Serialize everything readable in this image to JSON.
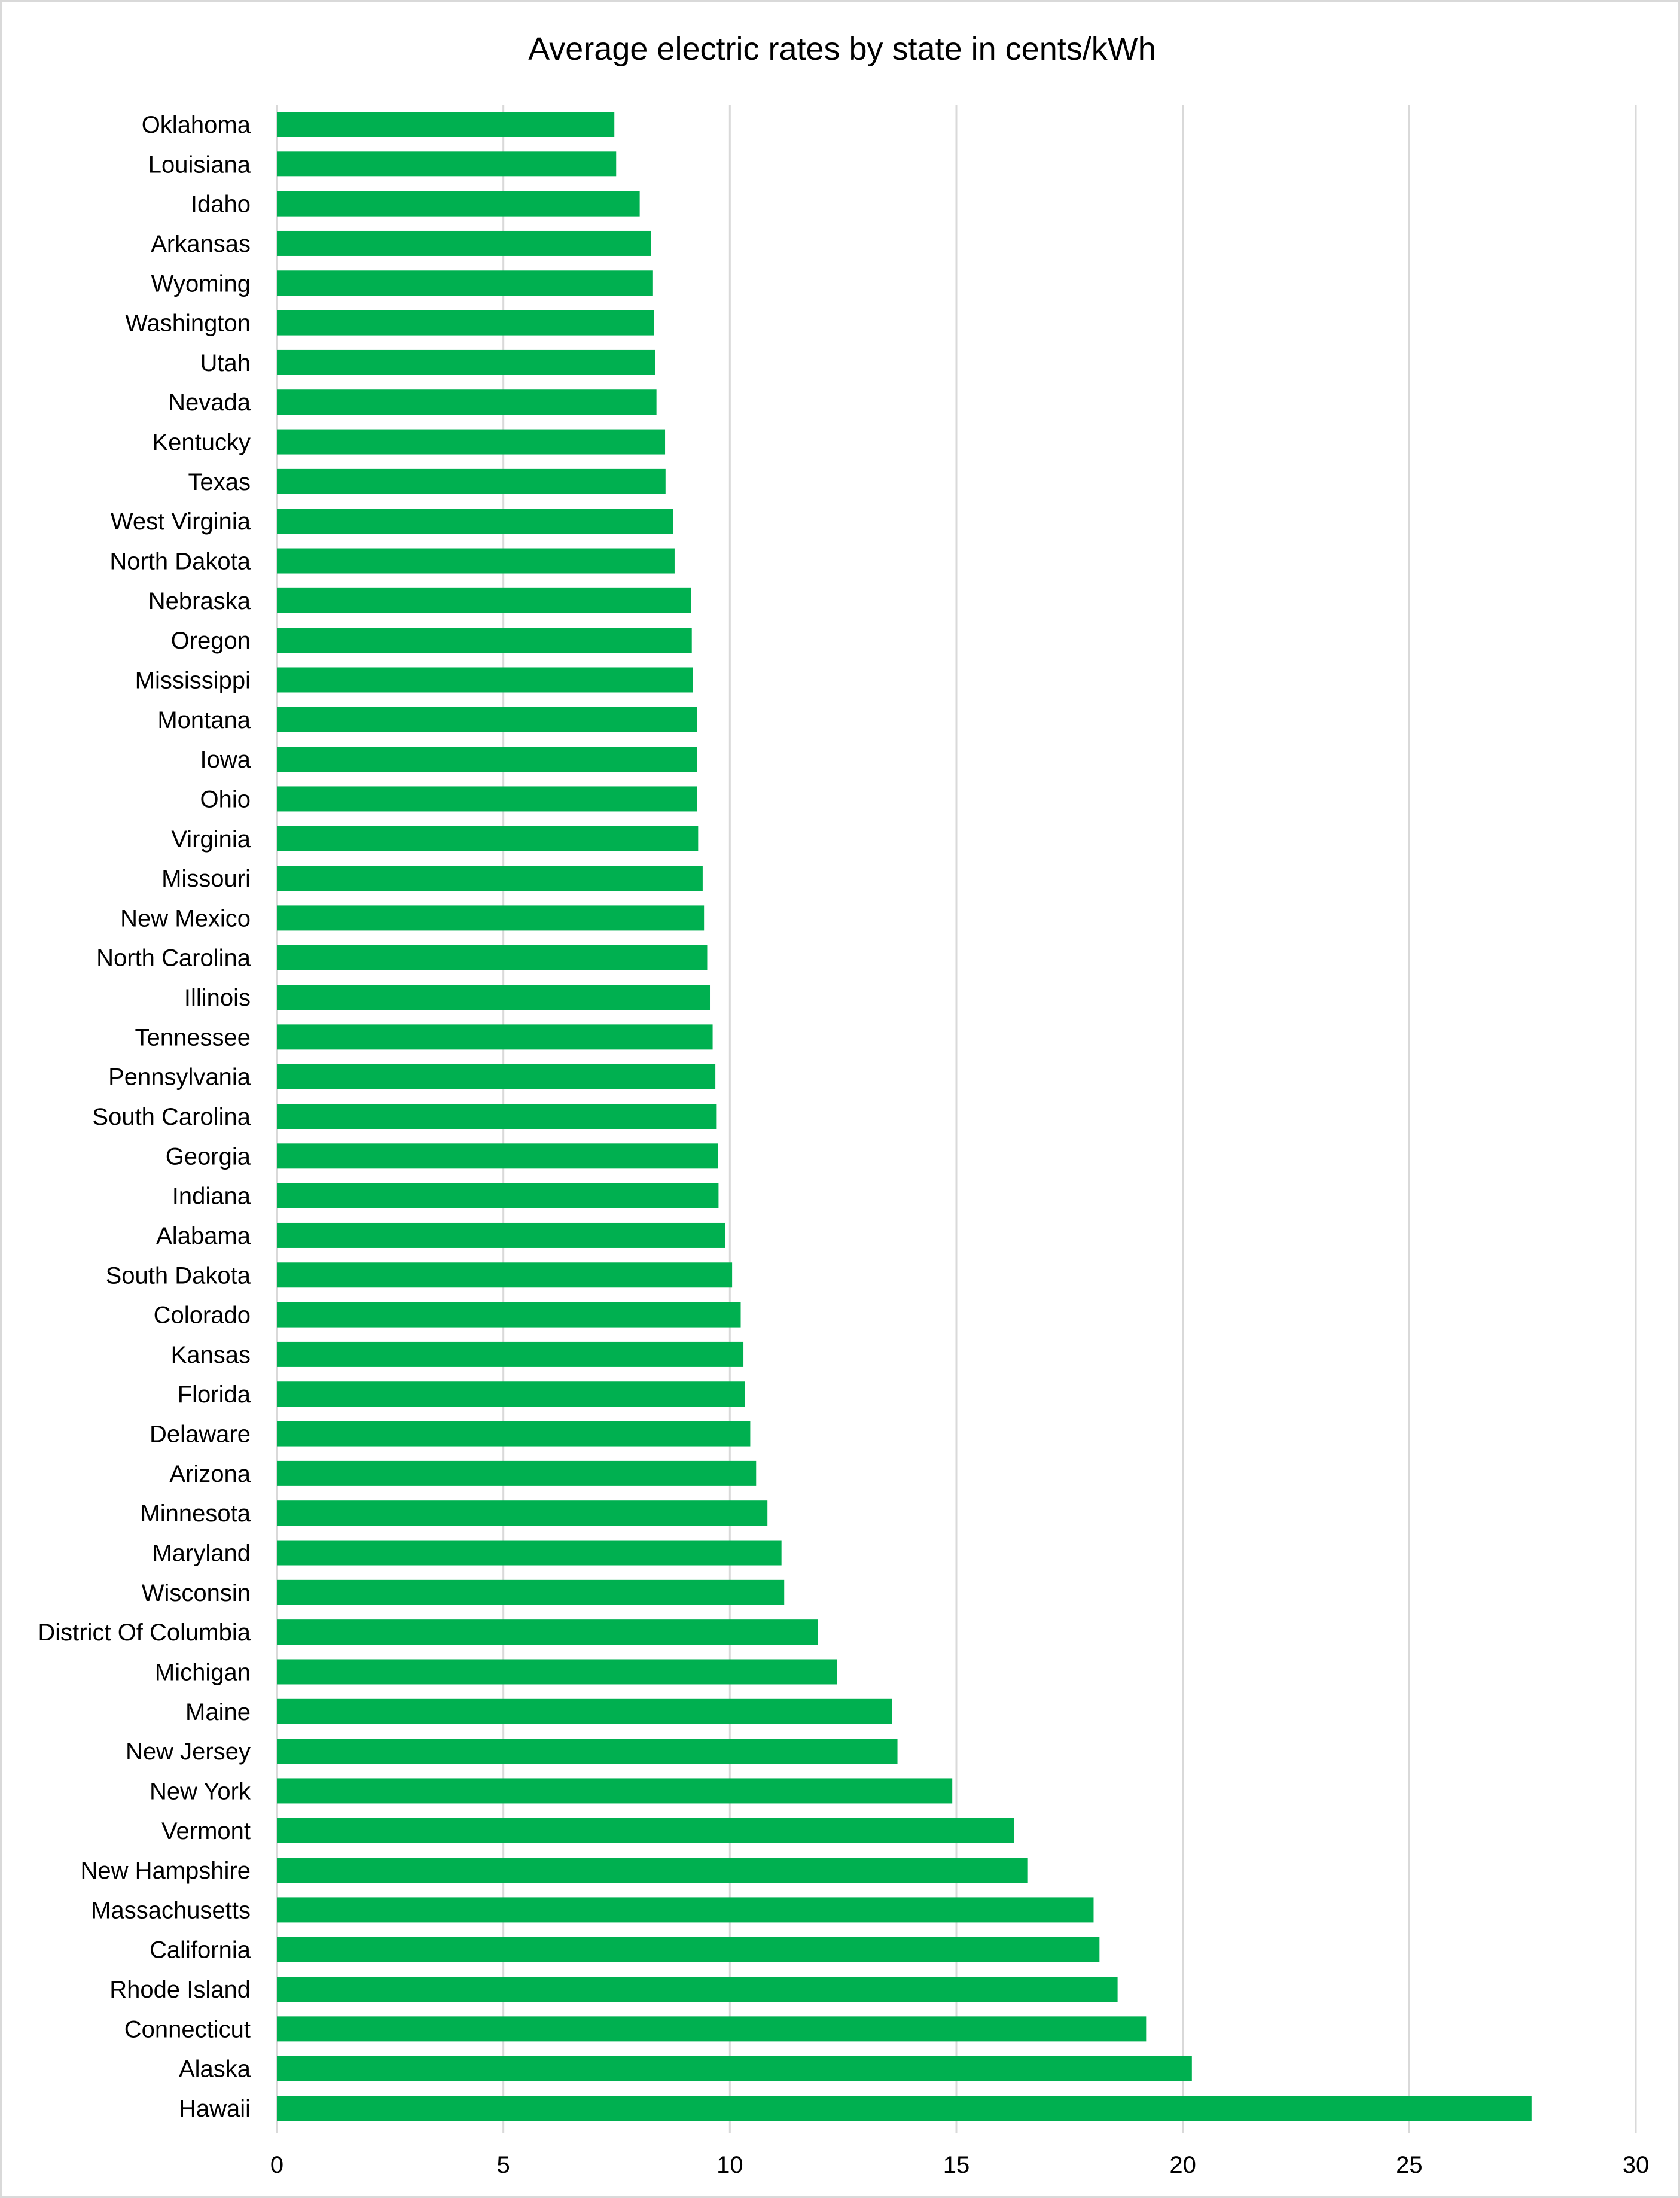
{
  "chart_data": {
    "type": "bar",
    "orientation": "horizontal",
    "title": "Average electric rates by state in cents/kWh",
    "xlabel": "",
    "ylabel": "",
    "xlim": [
      0,
      30
    ],
    "xticks": [
      0,
      5,
      10,
      15,
      20,
      25,
      30
    ],
    "grid": true,
    "legend": "none",
    "color": "#00B050",
    "categories": [
      "Oklahoma",
      "Louisiana",
      "Idaho",
      "Arkansas",
      "Wyoming",
      "Washington",
      "Utah",
      "Nevada",
      "Kentucky",
      "Texas",
      "West Virginia",
      "North Dakota",
      "Nebraska",
      "Oregon",
      "Mississippi",
      "Montana",
      "Iowa",
      "Ohio",
      "Virginia",
      "Missouri",
      "New Mexico",
      "North Carolina",
      "Illinois",
      "Tennessee",
      "Pennsylvania",
      "South Carolina",
      "Georgia",
      "Indiana",
      "Alabama",
      "South Dakota",
      "Colorado",
      "Kansas",
      "Florida",
      "Delaware",
      "Arizona",
      "Minnesota",
      "Maryland",
      "Wisconsin",
      "District Of Columbia",
      "Michigan",
      "Maine",
      "New Jersey",
      "New York",
      "Vermont",
      "New Hampshire",
      "Massachusetts",
      "California",
      "Rhode Island",
      "Connecticut",
      "Alaska",
      "Hawaii"
    ],
    "values": [
      7.45,
      7.49,
      8.01,
      8.26,
      8.29,
      8.32,
      8.35,
      8.38,
      8.57,
      8.58,
      8.75,
      8.78,
      9.15,
      9.16,
      9.19,
      9.27,
      9.28,
      9.28,
      9.3,
      9.4,
      9.43,
      9.5,
      9.56,
      9.62,
      9.68,
      9.71,
      9.74,
      9.75,
      9.9,
      10.05,
      10.24,
      10.3,
      10.33,
      10.45,
      10.58,
      10.83,
      11.14,
      11.2,
      11.94,
      12.37,
      13.58,
      13.7,
      14.91,
      16.27,
      16.58,
      18.03,
      18.16,
      18.56,
      19.19,
      20.2,
      27.7
    ]
  }
}
